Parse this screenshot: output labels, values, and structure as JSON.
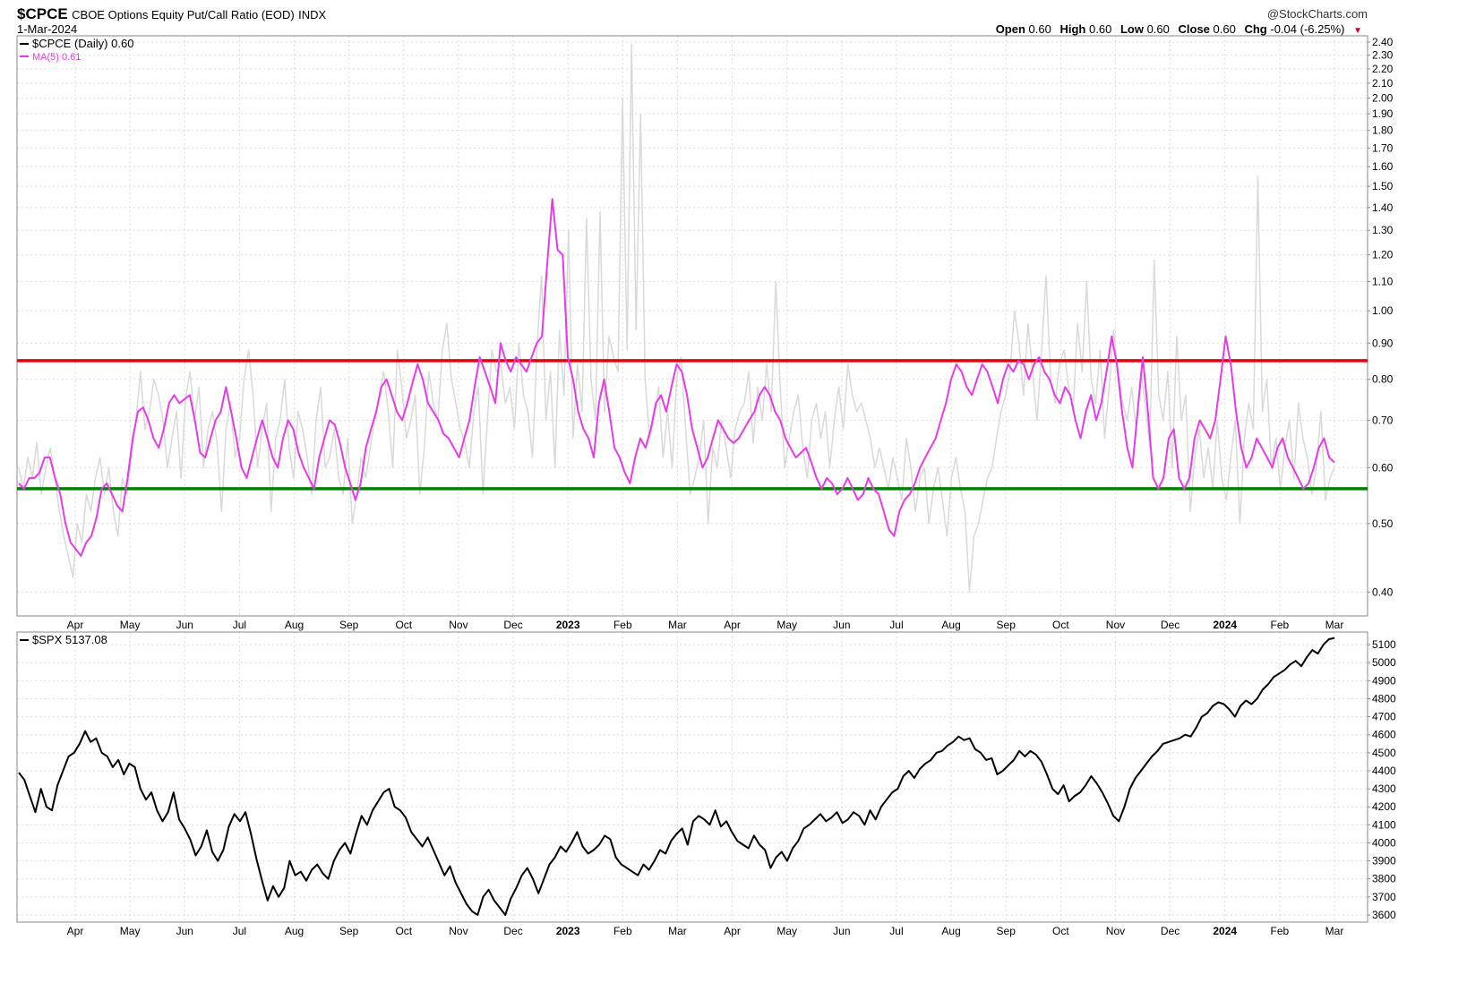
{
  "header": {
    "symbol": "$CPCE",
    "description": "CBOE Options Equity Put/Call Ratio (EOD)",
    "exchange": "INDX",
    "date": "1-Mar-2024",
    "watermark": "@StockCharts.com",
    "open_label": "Open",
    "open_value": "0.60",
    "high_label": "High",
    "high_value": "0.60",
    "low_label": "Low",
    "low_value": "0.60",
    "close_label": "Close",
    "close_value": "0.60",
    "chg_label": "Chg",
    "chg_value": "-0.04 (-6.25%)"
  },
  "chart_data": [
    {
      "type": "line",
      "panel": "top",
      "scale": "log",
      "ylim": [
        0.37,
        2.45
      ],
      "yticks": [
        0.4,
        0.5,
        0.6,
        0.7,
        0.8,
        0.9,
        1.0,
        1.1,
        1.2,
        1.3,
        1.4,
        1.5,
        1.6,
        1.7,
        1.8,
        1.9,
        2.0,
        2.1,
        2.2,
        2.3,
        2.4
      ],
      "ytick_labels": [
        "0.40",
        "0.50",
        "0.60",
        "0.70",
        "0.80",
        "0.90",
        "1.00",
        "1.10",
        "1.20",
        "1.30",
        "1.40",
        "1.50",
        "1.60",
        "1.70",
        "1.80",
        "1.90",
        "2.00",
        "2.10",
        "2.20",
        "2.30",
        "2.40"
      ],
      "x_labels": [
        "Apr",
        "May",
        "Jun",
        "Jul",
        "Aug",
        "Sep",
        "Oct",
        "Nov",
        "Dec",
        "2023",
        "Feb",
        "Mar",
        "Apr",
        "May",
        "Jun",
        "Jul",
        "Aug",
        "Sep",
        "Oct",
        "Nov",
        "Dec",
        "2024",
        "Feb",
        "Mar"
      ],
      "bold_x_labels": [
        "2023",
        "2024"
      ],
      "legend": [
        "$CPCE (Daily) 0.60",
        "MA(5) 0.61"
      ],
      "legend_position": "top-left",
      "grid": true,
      "hlines": [
        {
          "value": 0.85,
          "color": "#e8000b"
        },
        {
          "value": 0.56,
          "color": "#008000"
        }
      ],
      "series": [
        {
          "name": "$CPCE (Daily)",
          "color": "#d9d9d9",
          "values": [
            0.6,
            0.56,
            0.62,
            0.58,
            0.65,
            0.55,
            0.6,
            0.64,
            0.58,
            0.52,
            0.48,
            0.45,
            0.42,
            0.5,
            0.47,
            0.55,
            0.52,
            0.58,
            0.62,
            0.55,
            0.6,
            0.52,
            0.48,
            0.58,
            0.55,
            0.62,
            0.7,
            0.82,
            0.68,
            0.72,
            0.8,
            0.76,
            0.7,
            0.6,
            0.66,
            0.72,
            0.58,
            0.75,
            0.82,
            0.7,
            0.78,
            0.6,
            0.68,
            0.72,
            0.65,
            0.52,
            0.68,
            0.74,
            0.62,
            0.66,
            0.8,
            0.88,
            0.76,
            0.6,
            0.68,
            0.74,
            0.52,
            0.66,
            0.7,
            0.8,
            0.64,
            0.58,
            0.72,
            0.68,
            0.62,
            0.55,
            0.7,
            0.78,
            0.6,
            0.62,
            0.68,
            0.58,
            0.55,
            0.66,
            0.5,
            0.55,
            0.62,
            0.58,
            0.64,
            0.7,
            0.76,
            0.82,
            0.72,
            0.6,
            0.88,
            0.78,
            0.66,
            0.7,
            0.76,
            0.55,
            0.64,
            0.82,
            0.74,
            0.7,
            0.88,
            0.96,
            0.8,
            0.74,
            0.68,
            0.65,
            0.6,
            0.72,
            0.78,
            0.55,
            0.7,
            0.88,
            0.82,
            0.84,
            0.74,
            0.78,
            0.68,
            0.9,
            0.76,
            0.72,
            0.62,
            0.88,
            1.12,
            0.7,
            0.82,
            0.6,
            0.94,
            0.76,
            1.3,
            0.66,
            0.84,
            0.72,
            1.35,
            0.8,
            0.7,
            1.38,
            0.72,
            0.92,
            0.86,
            0.82,
            2.0,
            0.88,
            2.38,
            0.94,
            1.9,
            0.8,
            0.66,
            0.7,
            0.78,
            0.62,
            0.72,
            0.6,
            0.8,
            0.86,
            0.68,
            0.55,
            0.58,
            0.62,
            0.7,
            0.5,
            0.64,
            0.6,
            0.7,
            0.64,
            0.58,
            0.68,
            0.72,
            0.74,
            0.82,
            0.65,
            0.78,
            0.7,
            0.84,
            0.72,
            1.1,
            0.78,
            0.6,
            0.66,
            0.72,
            0.76,
            0.64,
            0.58,
            0.7,
            0.74,
            0.66,
            0.72,
            0.6,
            0.7,
            0.78,
            0.68,
            0.84,
            0.76,
            0.72,
            0.74,
            0.7,
            0.66,
            0.6,
            0.64,
            0.6,
            0.56,
            0.62,
            0.58,
            0.54,
            0.66,
            0.6,
            0.52,
            0.58,
            0.6,
            0.5,
            0.56,
            0.6,
            0.54,
            0.48,
            0.58,
            0.62,
            0.56,
            0.52,
            0.4,
            0.48,
            0.5,
            0.54,
            0.58,
            0.6,
            0.66,
            0.72,
            0.76,
            0.82,
            1.0,
            0.9,
            0.76,
            0.96,
            0.82,
            0.7,
            0.88,
            1.12,
            0.8,
            0.74,
            0.84,
            0.88,
            0.78,
            0.72,
            0.96,
            0.82,
            1.1,
            0.8,
            0.74,
            0.88,
            0.66,
            0.78,
            0.94,
            0.82,
            0.74,
            0.7,
            0.78,
            0.68,
            0.82,
            0.74,
            0.64,
            1.18,
            0.76,
            0.7,
            0.82,
            0.6,
            0.92,
            0.7,
            0.76,
            0.52,
            0.62,
            0.68,
            0.58,
            0.64,
            0.56,
            0.7,
            0.58,
            0.54,
            0.62,
            0.7,
            0.5,
            0.66,
            0.74,
            0.68,
            1.55,
            0.72,
            0.8,
            0.6,
            0.66,
            0.56,
            0.64,
            0.7,
            0.58,
            0.74,
            0.66,
            0.62,
            0.55,
            0.6,
            0.72,
            0.54,
            0.58,
            0.6
          ]
        },
        {
          "name": "MA(5)",
          "color": "#e83ae8",
          "values": [
            0.57,
            0.56,
            0.58,
            0.58,
            0.59,
            0.62,
            0.62,
            0.58,
            0.55,
            0.5,
            0.47,
            0.46,
            0.45,
            0.47,
            0.48,
            0.51,
            0.56,
            0.57,
            0.55,
            0.53,
            0.52,
            0.58,
            0.66,
            0.72,
            0.73,
            0.7,
            0.66,
            0.64,
            0.68,
            0.74,
            0.76,
            0.74,
            0.75,
            0.76,
            0.7,
            0.63,
            0.62,
            0.66,
            0.7,
            0.72,
            0.78,
            0.72,
            0.66,
            0.6,
            0.58,
            0.62,
            0.66,
            0.7,
            0.66,
            0.62,
            0.6,
            0.66,
            0.7,
            0.68,
            0.63,
            0.6,
            0.58,
            0.56,
            0.62,
            0.66,
            0.7,
            0.69,
            0.65,
            0.6,
            0.57,
            0.54,
            0.57,
            0.64,
            0.68,
            0.72,
            0.78,
            0.8,
            0.76,
            0.72,
            0.7,
            0.74,
            0.79,
            0.84,
            0.8,
            0.74,
            0.72,
            0.7,
            0.67,
            0.66,
            0.64,
            0.62,
            0.66,
            0.7,
            0.78,
            0.86,
            0.82,
            0.78,
            0.74,
            0.9,
            0.85,
            0.82,
            0.86,
            0.84,
            0.82,
            0.86,
            0.9,
            0.92,
            1.16,
            1.44,
            1.22,
            1.2,
            0.86,
            0.8,
            0.72,
            0.68,
            0.66,
            0.62,
            0.74,
            0.8,
            0.72,
            0.64,
            0.62,
            0.59,
            0.57,
            0.62,
            0.66,
            0.64,
            0.68,
            0.74,
            0.76,
            0.72,
            0.78,
            0.84,
            0.82,
            0.76,
            0.68,
            0.64,
            0.6,
            0.62,
            0.66,
            0.7,
            0.68,
            0.66,
            0.65,
            0.66,
            0.68,
            0.7,
            0.72,
            0.76,
            0.78,
            0.76,
            0.72,
            0.7,
            0.66,
            0.64,
            0.62,
            0.63,
            0.64,
            0.61,
            0.58,
            0.56,
            0.58,
            0.57,
            0.55,
            0.56,
            0.58,
            0.56,
            0.54,
            0.55,
            0.58,
            0.56,
            0.55,
            0.52,
            0.49,
            0.48,
            0.52,
            0.54,
            0.55,
            0.57,
            0.6,
            0.62,
            0.64,
            0.66,
            0.7,
            0.74,
            0.8,
            0.84,
            0.82,
            0.78,
            0.76,
            0.8,
            0.84,
            0.82,
            0.78,
            0.74,
            0.8,
            0.84,
            0.82,
            0.85,
            0.84,
            0.8,
            0.84,
            0.86,
            0.82,
            0.8,
            0.76,
            0.74,
            0.78,
            0.76,
            0.7,
            0.66,
            0.72,
            0.76,
            0.7,
            0.74,
            0.82,
            0.92,
            0.84,
            0.72,
            0.64,
            0.6,
            0.72,
            0.86,
            0.72,
            0.58,
            0.56,
            0.58,
            0.66,
            0.68,
            0.58,
            0.56,
            0.58,
            0.66,
            0.7,
            0.68,
            0.66,
            0.7,
            0.8,
            0.92,
            0.84,
            0.72,
            0.64,
            0.6,
            0.62,
            0.66,
            0.64,
            0.62,
            0.6,
            0.64,
            0.66,
            0.62,
            0.6,
            0.58,
            0.56,
            0.57,
            0.6,
            0.64,
            0.66,
            0.62,
            0.61
          ]
        }
      ]
    },
    {
      "type": "line",
      "panel": "bottom",
      "ylim": [
        3560,
        5170
      ],
      "yticks": [
        3600,
        3700,
        3800,
        3900,
        4000,
        4100,
        4200,
        4300,
        4400,
        4500,
        4600,
        4700,
        4800,
        4900,
        5000,
        5100
      ],
      "ytick_labels": [
        "3600",
        "3700",
        "3800",
        "3900",
        "4000",
        "4100",
        "4200",
        "4300",
        "4400",
        "4500",
        "4600",
        "4700",
        "4800",
        "4900",
        "5000",
        "5100"
      ],
      "x_labels": [
        "Apr",
        "May",
        "Jun",
        "Jul",
        "Aug",
        "Sep",
        "Oct",
        "Nov",
        "Dec",
        "2023",
        "Feb",
        "Mar",
        "Apr",
        "May",
        "Jun",
        "Jul",
        "Aug",
        "Sep",
        "Oct",
        "Nov",
        "Dec",
        "2024",
        "Feb",
        "Mar"
      ],
      "bold_x_labels": [
        "2023",
        "2024"
      ],
      "legend": [
        "$SPX 5137.08"
      ],
      "legend_position": "top-left",
      "grid": true,
      "series": [
        {
          "name": "$SPX",
          "color": "#000000",
          "values": [
            4390,
            4350,
            4260,
            4170,
            4300,
            4200,
            4180,
            4320,
            4400,
            4480,
            4500,
            4550,
            4620,
            4560,
            4580,
            4500,
            4480,
            4420,
            4460,
            4380,
            4440,
            4420,
            4300,
            4240,
            4280,
            4180,
            4120,
            4170,
            4280,
            4130,
            4080,
            4020,
            3930,
            3980,
            4070,
            3950,
            3900,
            3960,
            4090,
            4160,
            4120,
            4170,
            4050,
            3910,
            3790,
            3680,
            3760,
            3700,
            3750,
            3900,
            3820,
            3840,
            3790,
            3850,
            3880,
            3830,
            3800,
            3900,
            3960,
            4000,
            3940,
            4050,
            4150,
            4100,
            4180,
            4230,
            4280,
            4300,
            4200,
            4180,
            4140,
            4060,
            4020,
            3980,
            4030,
            3960,
            3890,
            3820,
            3870,
            3780,
            3720,
            3660,
            3620,
            3600,
            3700,
            3740,
            3680,
            3640,
            3600,
            3690,
            3750,
            3820,
            3860,
            3800,
            3720,
            3800,
            3880,
            3920,
            3980,
            3950,
            4000,
            4060,
            3980,
            3940,
            3960,
            3990,
            4040,
            4020,
            3920,
            3880,
            3860,
            3840,
            3820,
            3880,
            3850,
            3900,
            3960,
            3940,
            4010,
            4050,
            4080,
            3990,
            4120,
            4150,
            4130,
            4100,
            4180,
            4090,
            4120,
            4060,
            4010,
            3990,
            3970,
            4040,
            3990,
            3960,
            3860,
            3920,
            3950,
            3900,
            3970,
            4010,
            4080,
            4100,
            4130,
            4160,
            4120,
            4140,
            4170,
            4110,
            4130,
            4170,
            4150,
            4100,
            4180,
            4130,
            4200,
            4240,
            4280,
            4300,
            4370,
            4400,
            4360,
            4410,
            4440,
            4460,
            4500,
            4510,
            4540,
            4560,
            4590,
            4570,
            4580,
            4520,
            4500,
            4460,
            4470,
            4380,
            4400,
            4430,
            4460,
            4510,
            4480,
            4510,
            4490,
            4450,
            4380,
            4300,
            4270,
            4320,
            4230,
            4260,
            4280,
            4320,
            4370,
            4330,
            4280,
            4220,
            4150,
            4120,
            4200,
            4300,
            4360,
            4400,
            4440,
            4480,
            4510,
            4550,
            4560,
            4570,
            4580,
            4600,
            4590,
            4640,
            4700,
            4720,
            4760,
            4780,
            4770,
            4740,
            4700,
            4760,
            4790,
            4770,
            4800,
            4850,
            4880,
            4920,
            4940,
            4960,
            4990,
            5010,
            4980,
            5030,
            5070,
            5050,
            5100,
            5130,
            5137
          ]
        }
      ]
    }
  ]
}
